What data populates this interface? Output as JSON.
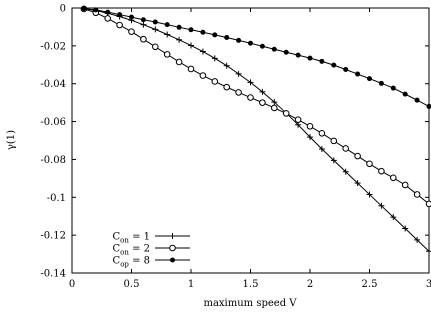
{
  "chart_data": {
    "type": "line",
    "xlabel": "maximum speed V",
    "ylabel": "γ(1)",
    "xlim": [
      0,
      3
    ],
    "ylim": [
      -0.14,
      0
    ],
    "x_ticks": [
      "0",
      "0.5",
      "1",
      "1.5",
      "2",
      "2.5",
      "3"
    ],
    "y_ticks": [
      "0",
      "-0.02",
      "-0.04",
      "-0.06",
      "-0.08",
      "-0.1",
      "-0.12",
      "-0.14"
    ],
    "x_tick_values": [
      0,
      0.5,
      1,
      1.5,
      2,
      2.5,
      3
    ],
    "y_tick_values": [
      0,
      -0.02,
      -0.04,
      -0.06,
      -0.08,
      -0.1,
      -0.12,
      -0.14
    ],
    "grid": false,
    "legend_position": "bottom-left",
    "series": [
      {
        "name": "C",
        "subscript": "on",
        "suffix": " = 1",
        "marker": "plus",
        "x": [
          0.1,
          0.2,
          0.3,
          0.4,
          0.5,
          0.6,
          0.7,
          0.8,
          0.9,
          1.0,
          1.1,
          1.2,
          1.3,
          1.4,
          1.5,
          1.6,
          1.7,
          1.8,
          1.9,
          2.0,
          2.1,
          2.2,
          2.3,
          2.4,
          2.5,
          2.6,
          2.7,
          2.8,
          2.9,
          3.0
        ],
        "y": [
          -0.0003,
          -0.0013,
          -0.0028,
          -0.0045,
          -0.0065,
          -0.0088,
          -0.0113,
          -0.014,
          -0.0168,
          -0.0198,
          -0.023,
          -0.0266,
          -0.0305,
          -0.0348,
          -0.0393,
          -0.0443,
          -0.0497,
          -0.0555,
          -0.0617,
          -0.0682,
          -0.0745,
          -0.0805,
          -0.0865,
          -0.0925,
          -0.0985,
          -0.1045,
          -0.1105,
          -0.1165,
          -0.1225,
          -0.1285
        ]
      },
      {
        "name": "C",
        "subscript": "on",
        "suffix": " = 2",
        "marker": "circle",
        "x": [
          0.1,
          0.2,
          0.3,
          0.4,
          0.5,
          0.6,
          0.7,
          0.8,
          0.9,
          1.0,
          1.1,
          1.2,
          1.3,
          1.4,
          1.5,
          1.6,
          1.7,
          1.8,
          1.9,
          2.0,
          2.1,
          2.2,
          2.3,
          2.4,
          2.5,
          2.6,
          2.7,
          2.8,
          2.9,
          3.0
        ],
        "y": [
          -0.0005,
          -0.0025,
          -0.0055,
          -0.009,
          -0.0125,
          -0.0165,
          -0.0205,
          -0.0245,
          -0.0285,
          -0.0322,
          -0.0357,
          -0.0388,
          -0.0418,
          -0.0446,
          -0.0473,
          -0.05,
          -0.0528,
          -0.0557,
          -0.059,
          -0.0625,
          -0.0662,
          -0.0702,
          -0.0742,
          -0.0782,
          -0.0823,
          -0.0862,
          -0.0897,
          -0.0935,
          -0.0985,
          -0.1035
        ]
      },
      {
        "name": "C",
        "subscript": "op",
        "suffix": " = 8",
        "marker": "dot",
        "x": [
          0.1,
          0.2,
          0.3,
          0.4,
          0.5,
          0.6,
          0.7,
          0.8,
          0.9,
          1.0,
          1.1,
          1.2,
          1.3,
          1.4,
          1.5,
          1.6,
          1.7,
          1.8,
          1.9,
          2.0,
          2.1,
          2.2,
          2.3,
          2.4,
          2.5,
          2.6,
          2.7,
          2.8,
          2.9,
          3.0
        ],
        "y": [
          -0.0003,
          -0.001,
          -0.0022,
          -0.0035,
          -0.0048,
          -0.0062,
          -0.0074,
          -0.0088,
          -0.0102,
          -0.0115,
          -0.0128,
          -0.0142,
          -0.0156,
          -0.0171,
          -0.0186,
          -0.0202,
          -0.0218,
          -0.0234,
          -0.0249,
          -0.0265,
          -0.0282,
          -0.0302,
          -0.0325,
          -0.0349,
          -0.0373,
          -0.0398,
          -0.0423,
          -0.0455,
          -0.0487,
          -0.052
        ]
      }
    ]
  }
}
